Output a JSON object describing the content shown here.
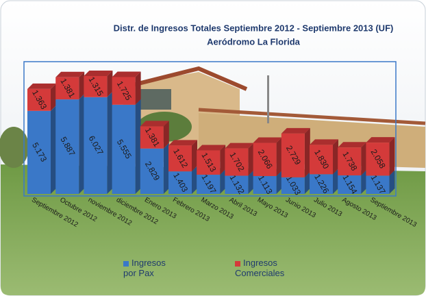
{
  "chart_data": {
    "type": "bar",
    "stacked": true,
    "title": "Distr. de Ingresos Totales  Septiembre 2012 - Septiembre 2013  (UF)",
    "subtitle": "Aeródromo La Florida",
    "categories": [
      "Septiembre 2012",
      "Octubre 2012",
      "noviembre 2012",
      "diciembre 2012",
      "Enero 2013",
      "Febrero 2013",
      "Marzo 2013",
      "Abril 2013",
      "Mayo 2013",
      "Junio 2013",
      "Julio 2013",
      "Agosto 2013",
      "Septiembre 2013"
    ],
    "series": [
      {
        "name": "Ingresos por Pax",
        "color": "#3a78c8",
        "values": [
          5173,
          5887,
          6027,
          5555,
          2829,
          1403,
          1197,
          1132,
          1113,
          1033,
          1226,
          1154,
          1137
        ],
        "value_labels": [
          "5.173",
          "5.887",
          "6.027",
          "5.555",
          "2.829",
          "1.403",
          "1.197",
          "1.132",
          "1.113",
          "1.033",
          "1.226",
          "1.154",
          "1.137"
        ]
      },
      {
        "name": "Ingresos Comerciales",
        "color": "#d43a3a",
        "values": [
          1363,
          1381,
          1315,
          1725,
          1381,
          1612,
          1513,
          1702,
          2066,
          2729,
          1830,
          1738,
          2058
        ],
        "value_labels": [
          "1.363",
          "1.381",
          "1.315",
          "1.725",
          "1.381",
          "1.612",
          "1.513",
          "1.702",
          "2.066",
          "2.729",
          "1.830",
          "1.738",
          "2.058"
        ]
      }
    ]
  }
}
